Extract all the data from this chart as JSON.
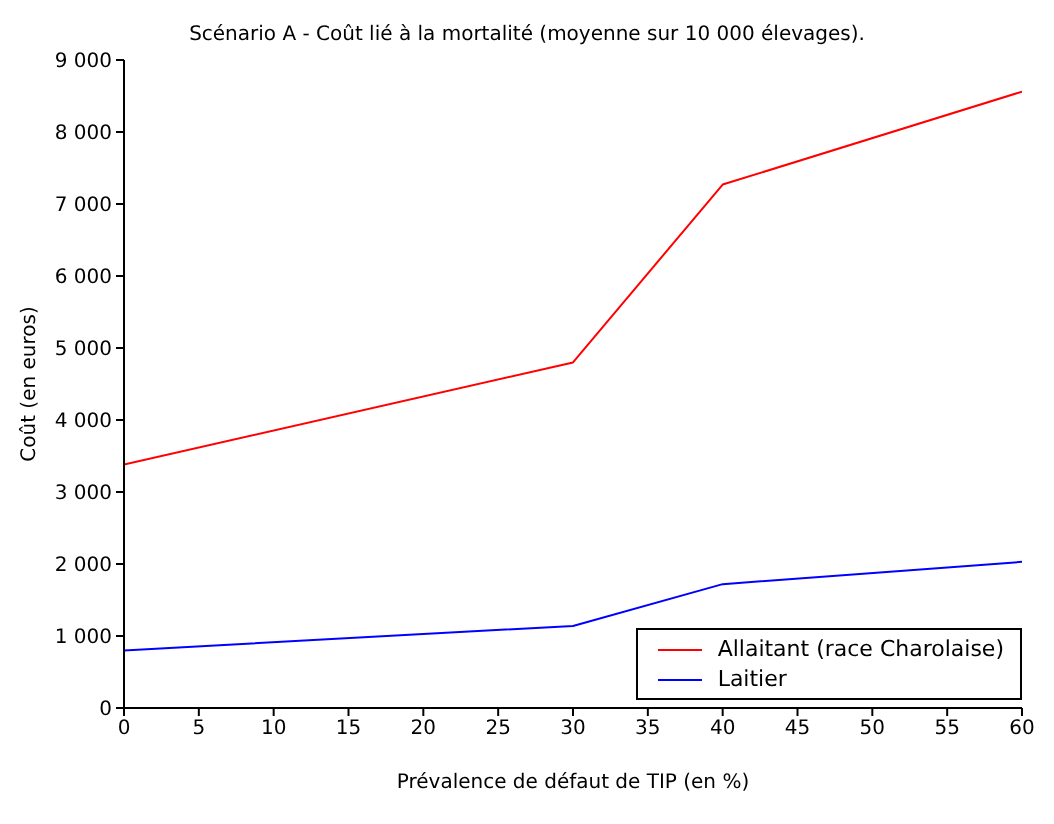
{
  "chart_data": {
    "type": "line",
    "title": "Scénario A - Coût lié à la mortalité (moyenne sur 10 000 élevages).",
    "xlabel": "Prévalence de défaut de TIP (en %)",
    "ylabel": "Coût (en euros)",
    "x": [
      0,
      30,
      40,
      60
    ],
    "series": [
      {
        "name": "Allaitant (race Charolaise)",
        "color": "#ff0000",
        "values": [
          3380,
          4800,
          7270,
          8560
        ]
      },
      {
        "name": "Laitier",
        "color": "#0000ff",
        "values": [
          800,
          1140,
          1720,
          2030
        ]
      }
    ],
    "xlim": [
      0,
      60
    ],
    "xticks": [
      0,
      5,
      10,
      15,
      20,
      25,
      30,
      35,
      40,
      45,
      50,
      55,
      60
    ],
    "ylim": [
      0,
      9000
    ],
    "yticks": [
      0,
      {
        "value": 1000,
        "label": "1 000"
      },
      {
        "value": 2000,
        "label": "2 000"
      },
      {
        "value": 3000,
        "label": "3 000"
      },
      {
        "value": 4000,
        "label": "4 000"
      },
      {
        "value": 5000,
        "label": "5 000"
      },
      {
        "value": 6000,
        "label": "6 000"
      },
      {
        "value": 7000,
        "label": "7 000"
      },
      {
        "value": 8000,
        "label": "8 000"
      },
      {
        "value": 9000,
        "label": "9 000"
      }
    ],
    "grid": false,
    "legend": "bottom right",
    "marker": "none",
    "line_style": "solid"
  }
}
